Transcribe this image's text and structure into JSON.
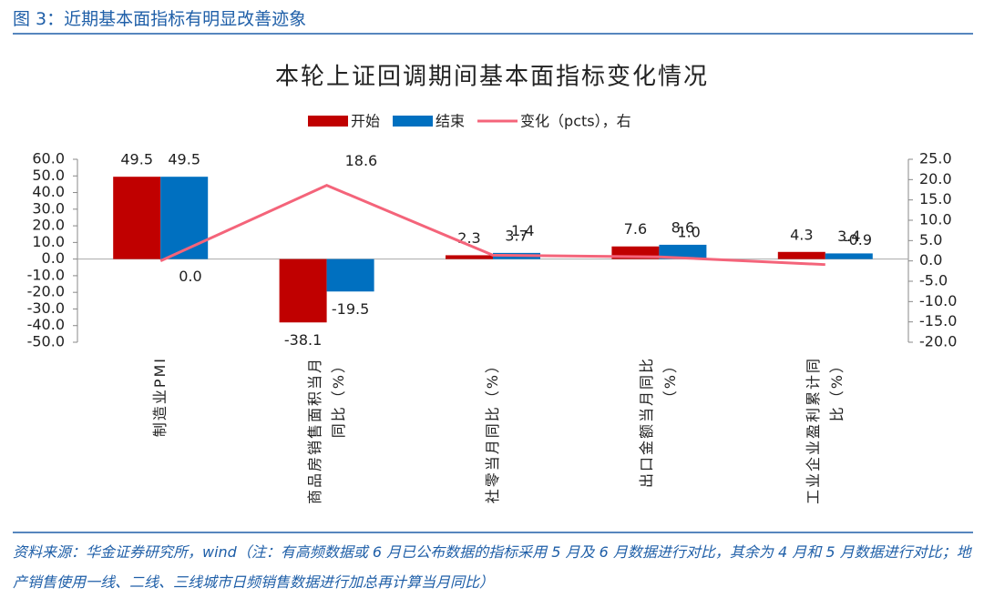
{
  "header": "图 3：近期基本面指标有明显改善迹象",
  "chart_data": {
    "type": "bar",
    "title": "本轮上证回调期间基本面指标变化情况",
    "categories": [
      "制造业PMI",
      "商品房销售面积当月同比（%）",
      "社零当月同比（%）",
      "出口金额当月同比（%）",
      "工业企业盈利累计同比（%）"
    ],
    "series": [
      {
        "name": "开始",
        "type": "bar",
        "color": "#c00000",
        "values": [
          49.5,
          -38.1,
          2.3,
          7.6,
          4.3
        ]
      },
      {
        "name": "结束",
        "type": "bar",
        "color": "#0070c0",
        "values": [
          49.5,
          -19.5,
          3.7,
          8.6,
          3.4
        ]
      },
      {
        "name": "变化（pcts），右",
        "type": "line",
        "axis": "y2",
        "color": "#f4647a",
        "values": [
          0,
          18.6,
          1.4,
          1.0,
          -0.9
        ],
        "value_labels": [
          "0.0",
          "18.6",
          "1.4",
          "1.0",
          "-0.9"
        ]
      }
    ],
    "ylim": [
      -50,
      60
    ],
    "yticks": [
      {
        "value": -50,
        "label": "-50.0"
      },
      {
        "value": -40,
        "label": "-40.0"
      },
      {
        "value": -30,
        "label": "-30.0"
      },
      {
        "value": -20,
        "label": "-20.0"
      },
      {
        "value": -10,
        "label": "-10.0"
      },
      {
        "value": 0,
        "label": "0.0"
      },
      {
        "value": 10,
        "label": "10.0"
      },
      {
        "value": 20,
        "label": "20.0"
      },
      {
        "value": 30,
        "label": "30.0"
      },
      {
        "value": 40,
        "label": "40.0"
      },
      {
        "value": 50,
        "label": "50.0"
      },
      {
        "value": 60,
        "label": "60.0"
      }
    ],
    "y2lim": [
      -20,
      25
    ],
    "y2ticks": [
      {
        "value": -20,
        "label": "-20.0"
      },
      {
        "value": -15,
        "label": "-15.0"
      },
      {
        "value": -10,
        "label": "-10.0"
      },
      {
        "value": -5,
        "label": "-5.0"
      },
      {
        "value": 0,
        "label": "0.0"
      },
      {
        "value": 5,
        "label": "5.0"
      },
      {
        "value": 10,
        "label": "10.0"
      },
      {
        "value": 15,
        "label": "15.0"
      },
      {
        "value": 20,
        "label": "20.0"
      },
      {
        "value": 25,
        "label": "25.0"
      }
    ],
    "legend": "top"
  },
  "footer": "资料来源：华金证券研究所，wind（注：有高频数据或 6 月已公布数据的指标采用 5 月及 6 月数据进行对比，其余为 4 月和 5 月数据进行对比；地产销售使用一线、二线、三线城市日频销售数据进行加总再计算当月同比）"
}
